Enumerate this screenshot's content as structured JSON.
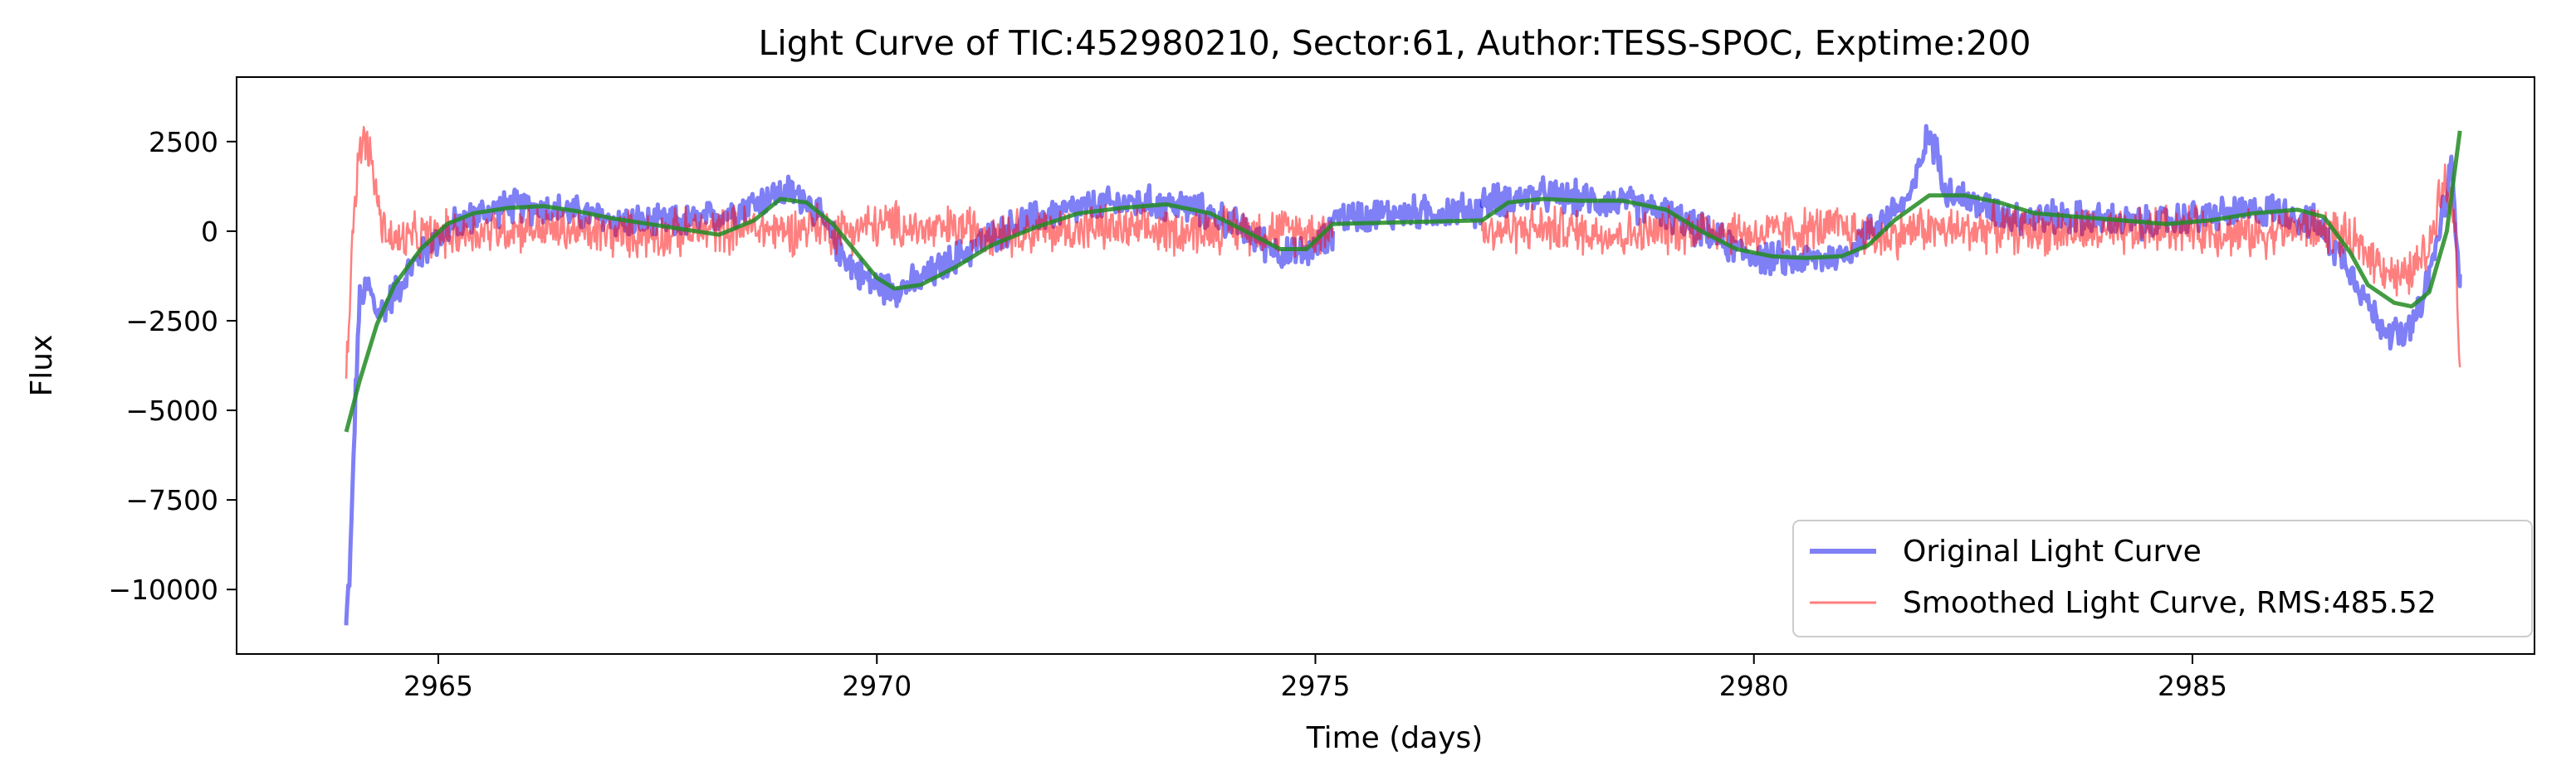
{
  "chart_data": {
    "type": "line",
    "title": "Light Curve of TIC:452980210, Sector:61, Author:TESS-SPOC, Exptime:200",
    "xlabel": "Time (days)",
    "ylabel": "Flux",
    "xlim": [
      2962.7,
      2988.9
    ],
    "ylim": [
      -11800,
      4300
    ],
    "xticks": [
      2965,
      2970,
      2975,
      2980,
      2985
    ],
    "yticks": [
      2500,
      0,
      -2500,
      -5000,
      -7500,
      -10000
    ],
    "xtick_labels": [
      "2965",
      "2970",
      "2975",
      "2980",
      "2985"
    ],
    "ytick_labels": [
      "2500",
      "0",
      "−2500",
      "−5000",
      "−7500",
      "−10000"
    ],
    "grid": false,
    "legend_position": "lower-right",
    "legend": {
      "original": "Original Light Curve",
      "smoothed": "Smoothed Light Curve, RMS:485.52"
    },
    "colors": {
      "original": "#0000ee",
      "smoothed": "#ff0000",
      "trend": "#228b22"
    },
    "series": [
      {
        "name": "Original Light Curve",
        "role": "original",
        "segments": [
          {
            "x": [
              2963.95,
              2964.0,
              2964.05,
              2964.1,
              2964.2,
              2964.3,
              2964.4,
              2964.5,
              2964.7,
              2964.9,
              2965.2,
              2965.5,
              2965.8,
              2966.2,
              2966.6,
              2967.0,
              2967.5,
              2968.0,
              2968.4,
              2968.8,
              2969.0,
              2969.2,
              2969.4,
              2969.6,
              2969.8,
              2970.0,
              2970.2,
              2970.5,
              2970.8,
              2971.2,
              2971.6,
              2972.0,
              2972.5,
              2973.0,
              2973.5,
              2974.0,
              2974.4,
              2974.7,
              2975.0,
              2975.2
            ],
            "y": [
              -11000,
              -9000,
              -5000,
              -2000,
              -1500,
              -2300,
              -2100,
              -1700,
              -1000,
              -400,
              200,
              500,
              700,
              650,
              500,
              300,
              200,
              300,
              600,
              1000,
              1100,
              900,
              200,
              -600,
              -1200,
              -1500,
              -1600,
              -1400,
              -900,
              -300,
              200,
              500,
              700,
              800,
              700,
              300,
              -300,
              -700,
              -500,
              0
            ]
          },
          {
            "x": [
              2975.2,
              2976.0,
              2976.9
            ],
            "y": [
              400,
              500,
              600
            ]
          },
          {
            "x": [
              2976.9,
              2977.2,
              2977.6,
              2978.0,
              2978.5,
              2979.0,
              2979.4,
              2979.8,
              2980.2,
              2980.6,
              2981.0,
              2981.4,
              2981.8,
              2982.0,
              2982.2,
              2982.4,
              2982.7,
              2983.0,
              2983.5,
              2984.0,
              2984.5,
              2985.0,
              2985.5,
              2986.0,
              2986.4,
              2986.8,
              2987.1,
              2987.4,
              2987.6,
              2987.8,
              2987.95,
              2988.05
            ],
            "y": [
              800,
              900,
              1000,
              900,
              800,
              500,
              0,
              -500,
              -800,
              -800,
              -700,
              200,
              1000,
              2800,
              1200,
              900,
              600,
              400,
              400,
              300,
              200,
              400,
              500,
              600,
              200,
              -1000,
              -2500,
              -3000,
              -2200,
              -200,
              1800,
              -1200
            ]
          }
        ]
      },
      {
        "name": "Smoothed Light Curve, RMS:485.52",
        "role": "smoothed",
        "segments": [
          {
            "x": [
              2963.95,
              2964.05,
              2964.15,
              2964.25,
              2964.35,
              2964.5,
              2964.7,
              2965.0,
              2965.5,
              2966.0,
              2966.5,
              2967.0,
              2967.5,
              2968.0,
              2968.5,
              2969.0,
              2969.3,
              2969.5,
              2969.8,
              2970.2,
              2970.6,
              2971.0,
              2971.5,
              2972.0,
              2972.5,
              2973.0,
              2973.5,
              2974.0,
              2974.5,
              2975.0,
              2975.2
            ],
            "y": [
              -4000,
              1200,
              2700,
              1800,
              200,
              -300,
              -200,
              -100,
              0,
              100,
              0,
              -100,
              -100,
              0,
              100,
              0,
              200,
              0,
              100,
              200,
              0,
              100,
              0,
              0,
              100,
              0,
              0,
              100,
              0,
              0,
              100
            ]
          },
          {
            "x": [
              2976.9,
              2977.5,
              2978.0,
              2978.5,
              2979.0,
              2979.5,
              2980.0,
              2980.5,
              2981.0,
              2981.5,
              2981.9,
              2982.3,
              2982.7,
              2983.2,
              2983.7,
              2984.2,
              2984.7,
              2985.2,
              2985.7,
              2986.2,
              2986.6,
              2987.0,
              2987.4,
              2987.7,
              2987.85,
              2988.0,
              2988.05
            ],
            "y": [
              0,
              100,
              0,
              -100,
              0,
              100,
              -100,
              0,
              100,
              -200,
              100,
              0,
              100,
              0,
              0,
              -100,
              100,
              0,
              -100,
              100,
              0,
              -600,
              -1400,
              -500,
              1600,
              200,
              -3800
            ]
          }
        ]
      },
      {
        "name": "",
        "role": "trend",
        "segments": [
          {
            "x": [
              2963.95,
              2964.1,
              2964.3,
              2964.5,
              2964.8,
              2965.1,
              2965.4,
              2965.8,
              2966.2,
              2966.6,
              2967.0,
              2967.4,
              2967.8,
              2968.2,
              2968.6,
              2968.9,
              2969.2,
              2969.5,
              2969.8,
              2970.0,
              2970.2,
              2970.5,
              2970.9,
              2971.3,
              2971.8,
              2972.3,
              2972.8,
              2973.3,
              2973.8,
              2974.2,
              2974.6,
              2974.9,
              2975.2,
              2976.0,
              2976.9,
              2977.2,
              2977.6,
              2978.0,
              2978.5,
              2979.0,
              2979.4,
              2979.8,
              2980.2,
              2980.6,
              2981.0,
              2981.3,
              2981.6,
              2982.0,
              2982.4,
              2982.8,
              2983.2,
              2983.7,
              2984.2,
              2984.7,
              2985.2,
              2985.7,
              2986.2,
              2986.5,
              2986.8,
              2987.0,
              2987.3,
              2987.5,
              2987.7,
              2987.9,
              2988.05
            ],
            "y": [
              -5600,
              -4200,
              -2600,
              -1500,
              -500,
              200,
              500,
              650,
              700,
              550,
              350,
              200,
              50,
              -100,
              300,
              900,
              800,
              200,
              -700,
              -1300,
              -1600,
              -1500,
              -1000,
              -400,
              100,
              500,
              650,
              750,
              500,
              0,
              -500,
              -500,
              200,
              250,
              300,
              800,
              900,
              850,
              850,
              600,
              0,
              -500,
              -700,
              -750,
              -700,
              -400,
              300,
              1000,
              1000,
              800,
              500,
              400,
              300,
              200,
              300,
              500,
              600,
              400,
              -600,
              -1500,
              -2000,
              -2100,
              -1700,
              0,
              2800
            ]
          }
        ]
      }
    ]
  }
}
